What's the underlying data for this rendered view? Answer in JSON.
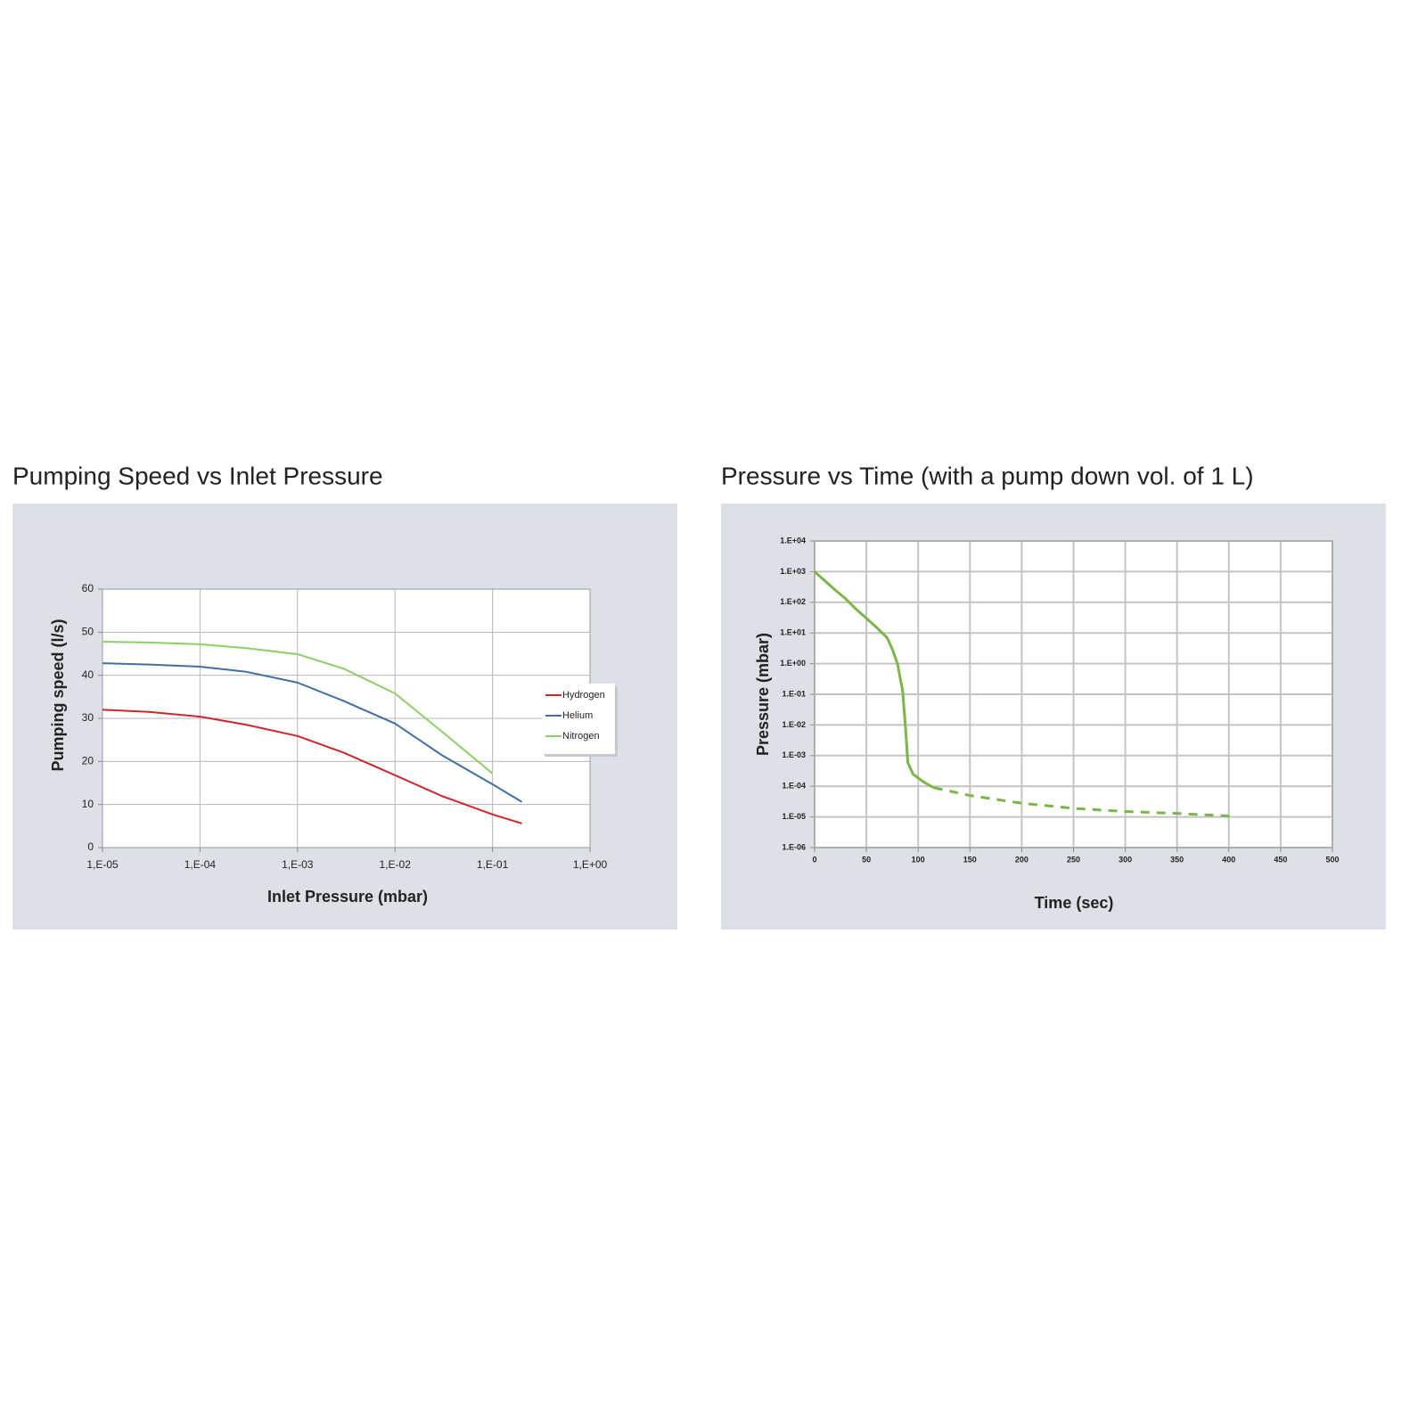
{
  "chart_data": [
    {
      "type": "line",
      "title": "Pumping Speed vs Inlet Pressure",
      "xlabel": "Inlet Pressure (mbar)",
      "ylabel": "Pumping speed (l/s)",
      "xscale": "log",
      "x": [
        1e-05,
        3e-05,
        0.0001,
        0.0003,
        0.001,
        0.003,
        0.01,
        0.03,
        0.1,
        0.2
      ],
      "xlim": [
        1e-05,
        1
      ],
      "xticks": [
        {
          "value": 1e-05,
          "label": "1,E-05"
        },
        {
          "value": 0.0001,
          "label": "1,E-04"
        },
        {
          "value": 0.001,
          "label": "1,E-03"
        },
        {
          "value": 0.01,
          "label": "1,E-02"
        },
        {
          "value": 0.1,
          "label": "1,E-01"
        },
        {
          "value": 1,
          "label": "1,E+00"
        }
      ],
      "ylim": [
        0,
        60
      ],
      "yticks": [
        0,
        10,
        20,
        30,
        40,
        50,
        60
      ],
      "grid": true,
      "legend": "right",
      "series": [
        {
          "name": "Hydrogen",
          "color": "#d0262a",
          "values": [
            32,
            31.5,
            30.4,
            28.5,
            25.9,
            22,
            16.8,
            12,
            7.7,
            5.6
          ]
        },
        {
          "name": "Helium",
          "color": "#3f6fa6",
          "values": [
            42.8,
            42.5,
            42,
            40.8,
            38.3,
            34,
            28.8,
            21.5,
            14.7,
            10.6
          ]
        },
        {
          "name": "Nitrogen",
          "color": "#8ccf6a",
          "values": [
            47.8,
            47.6,
            47.2,
            46.3,
            44.9,
            41.5,
            35.8,
            27,
            17.2,
            null
          ]
        }
      ]
    },
    {
      "type": "line",
      "title": "Pressure vs Time (with a pump down vol. of 1 L)",
      "xlabel": "Time (sec)",
      "ylabel": "Pressure (mbar)",
      "yscale": "log",
      "x": [
        0,
        10,
        20,
        30,
        40,
        50,
        60,
        70,
        75,
        80,
        85,
        88,
        90,
        95,
        105,
        115,
        150,
        200,
        250,
        300,
        350,
        405
      ],
      "xlim": [
        0,
        500
      ],
      "xticks": [
        0,
        50,
        100,
        150,
        200,
        250,
        300,
        350,
        400,
        450,
        500
      ],
      "ylim": [
        1e-06,
        10000
      ],
      "yticks": [
        {
          "value": 1e-06,
          "label": "1.E-06"
        },
        {
          "value": 1e-05,
          "label": "1.E-05"
        },
        {
          "value": 0.0001,
          "label": "1.E-04"
        },
        {
          "value": 0.001,
          "label": "1.E-03"
        },
        {
          "value": 0.01,
          "label": "1.E-02"
        },
        {
          "value": 0.1,
          "label": "1.E-01"
        },
        {
          "value": 1,
          "label": "1.E+00"
        },
        {
          "value": 10,
          "label": "1.E+01"
        },
        {
          "value": 100,
          "label": "1.E+02"
        },
        {
          "value": 1000,
          "label": "1.E+03"
        },
        {
          "value": 10000,
          "label": "1.E+04"
        }
      ],
      "grid": true,
      "series": [
        {
          "color": "#7ab648",
          "line_style": "solid",
          "values": [
            1000,
            500,
            250,
            130,
            60,
            30,
            15,
            7,
            3,
            1,
            0.13,
            0.0065,
            0.0006,
            0.00025,
            0.00014,
            9e-05,
            null,
            null,
            null,
            null,
            null,
            null
          ]
        },
        {
          "color": "#7ab648",
          "line_style": "dashed",
          "values": [
            null,
            null,
            null,
            null,
            null,
            null,
            null,
            null,
            null,
            null,
            null,
            null,
            null,
            null,
            null,
            9e-05,
            5e-05,
            2.8e-05,
            1.9e-05,
            1.5e-05,
            1.3e-05,
            1.05e-05
          ]
        }
      ]
    }
  ]
}
